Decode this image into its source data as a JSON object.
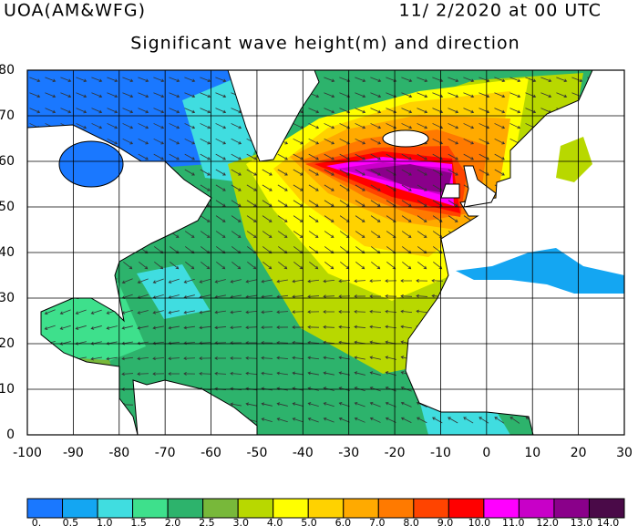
{
  "header": {
    "left": "UOA(AM&WFG)",
    "right": "11/ 2/2020 at 00 UTC",
    "title": "Significant wave height(m) and direction"
  },
  "map": {
    "xlim": [
      -100,
      30
    ],
    "ylim": [
      0,
      80
    ],
    "xticks": [
      -100,
      -90,
      -80,
      -70,
      -60,
      -50,
      -40,
      -30,
      -20,
      -10,
      0,
      10,
      20,
      30
    ],
    "yticks": [
      0,
      10,
      20,
      30,
      40,
      50,
      60,
      70,
      80
    ],
    "colorbar": {
      "levels": [
        {
          "value": 0,
          "label": "0."
        },
        0.5,
        {
          "value": 1,
          "label": "1.0"
        },
        1.5,
        {
          "value": 2,
          "label": "2.0"
        },
        2.5,
        {
          "value": 3,
          "label": "3.0"
        },
        {
          "value": 4,
          "label": "4.0"
        },
        {
          "value": 5,
          "label": "5.0"
        },
        {
          "value": 6,
          "label": "6.0"
        },
        {
          "value": 7,
          "label": "7.0"
        },
        {
          "value": 8,
          "label": "8.0"
        },
        {
          "value": 9,
          "label": "9.0"
        },
        {
          "value": 10,
          "label": "10.0"
        },
        {
          "value": 11,
          "label": "11.0"
        },
        {
          "value": 12,
          "label": "12.0"
        },
        {
          "value": 13,
          "label": "13.0"
        },
        {
          "value": 14,
          "label": "14.0"
        }
      ],
      "colors": [
        "#1a78ff",
        "#14a6f2",
        "#40dde0",
        "#3ee08c",
        "#2db36c",
        "#78b83a",
        "#b8d800",
        "#ffff00",
        "#ffd200",
        "#ffaa00",
        "#ff7a00",
        "#ff4400",
        "#ff0000",
        "#ff00ff",
        "#c800c8",
        "#8a008a",
        "#4a0a48"
      ]
    }
  }
}
